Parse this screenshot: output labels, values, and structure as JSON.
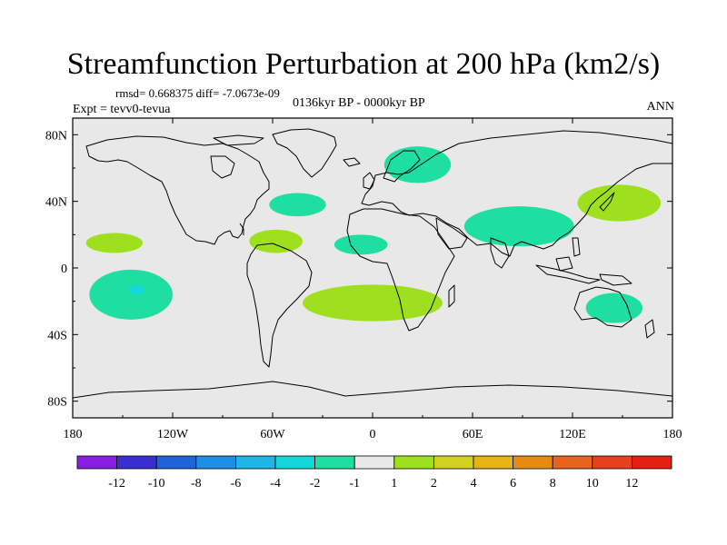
{
  "title": "Streamfunction Perturbation at 200 hPa (km2/s)",
  "stats_line": "rmsd= 0.668375 diff= -7.0673e-09",
  "experiment": "Expt = tevv0-tevua",
  "period": "0136kyr BP - 0000kyr BP",
  "season": "ANN",
  "y_ticks": [
    "80N",
    "40N",
    "0",
    "40S",
    "80S"
  ],
  "x_ticks": [
    "180",
    "120W",
    "60W",
    "0",
    "60E",
    "120E",
    "180"
  ],
  "colorbar": {
    "labels": [
      "-12",
      "-10",
      "-8",
      "-6",
      "-4",
      "-2",
      "-1",
      "1",
      "2",
      "4",
      "6",
      "8",
      "10",
      "12"
    ],
    "colors": [
      "#8a1ee0",
      "#3a2ed0",
      "#1e64d8",
      "#1e8ee6",
      "#1eb6e6",
      "#14d8d8",
      "#1edea0",
      "#e8e8e8",
      "#9ee01e",
      "#d2d21e",
      "#e6b414",
      "#e68a14",
      "#e6641e",
      "#e6401e",
      "#e61e14"
    ]
  },
  "map": {
    "background": "#e8e8e8",
    "lon_range": [
      -180,
      180
    ],
    "lat_range": [
      -90,
      90
    ],
    "anomalies": [
      {
        "region": "north-atlantic-east",
        "value_class": "-1",
        "color": "#1edea0",
        "lon": -45,
        "lat": 38,
        "rlon": 17,
        "rlat": 7
      },
      {
        "region": "scandinavia",
        "value_class": "-1",
        "color": "#1edea0",
        "lon": 27,
        "lat": 62,
        "rlon": 20,
        "rlat": 11
      },
      {
        "region": "west-africa",
        "value_class": "-1",
        "color": "#1edea0",
        "lon": -7,
        "lat": 14,
        "rlon": 16,
        "rlat": 6
      },
      {
        "region": "south-asia",
        "value_class": "-1",
        "color": "#1edea0",
        "lon": 88,
        "lat": 25,
        "rlon": 33,
        "rlat": 12
      },
      {
        "region": "south-pacific",
        "value_class": "-1",
        "color": "#1edea0",
        "lon": -145,
        "lat": -16,
        "rlon": 25,
        "rlat": 15
      },
      {
        "region": "australia",
        "value_class": "-1",
        "color": "#1edea0",
        "lon": 145,
        "lat": -24,
        "rlon": 17,
        "rlat": 9
      },
      {
        "region": "hawaii",
        "value_class": "1",
        "color": "#9ee01e",
        "lon": -155,
        "lat": 15,
        "rlon": 17,
        "rlat": 6
      },
      {
        "region": "caribbean",
        "value_class": "1",
        "color": "#9ee01e",
        "lon": -58,
        "lat": 16,
        "rlon": 16,
        "rlat": 7
      },
      {
        "region": "japan-pacific",
        "value_class": "1",
        "color": "#9ee01e",
        "lon": 148,
        "lat": 39,
        "rlon": 25,
        "rlat": 11
      },
      {
        "region": "south-atlantic",
        "value_class": "1",
        "color": "#9ee01e",
        "lon": 0,
        "lat": -21,
        "rlon": 42,
        "rlat": 11
      }
    ],
    "minor_anomaly": {
      "region": "south-pacific-core",
      "value_class": "-2",
      "color": "#14d8d8",
      "lon": -142,
      "lat": -13,
      "rlon": 5,
      "rlat": 3
    }
  }
}
